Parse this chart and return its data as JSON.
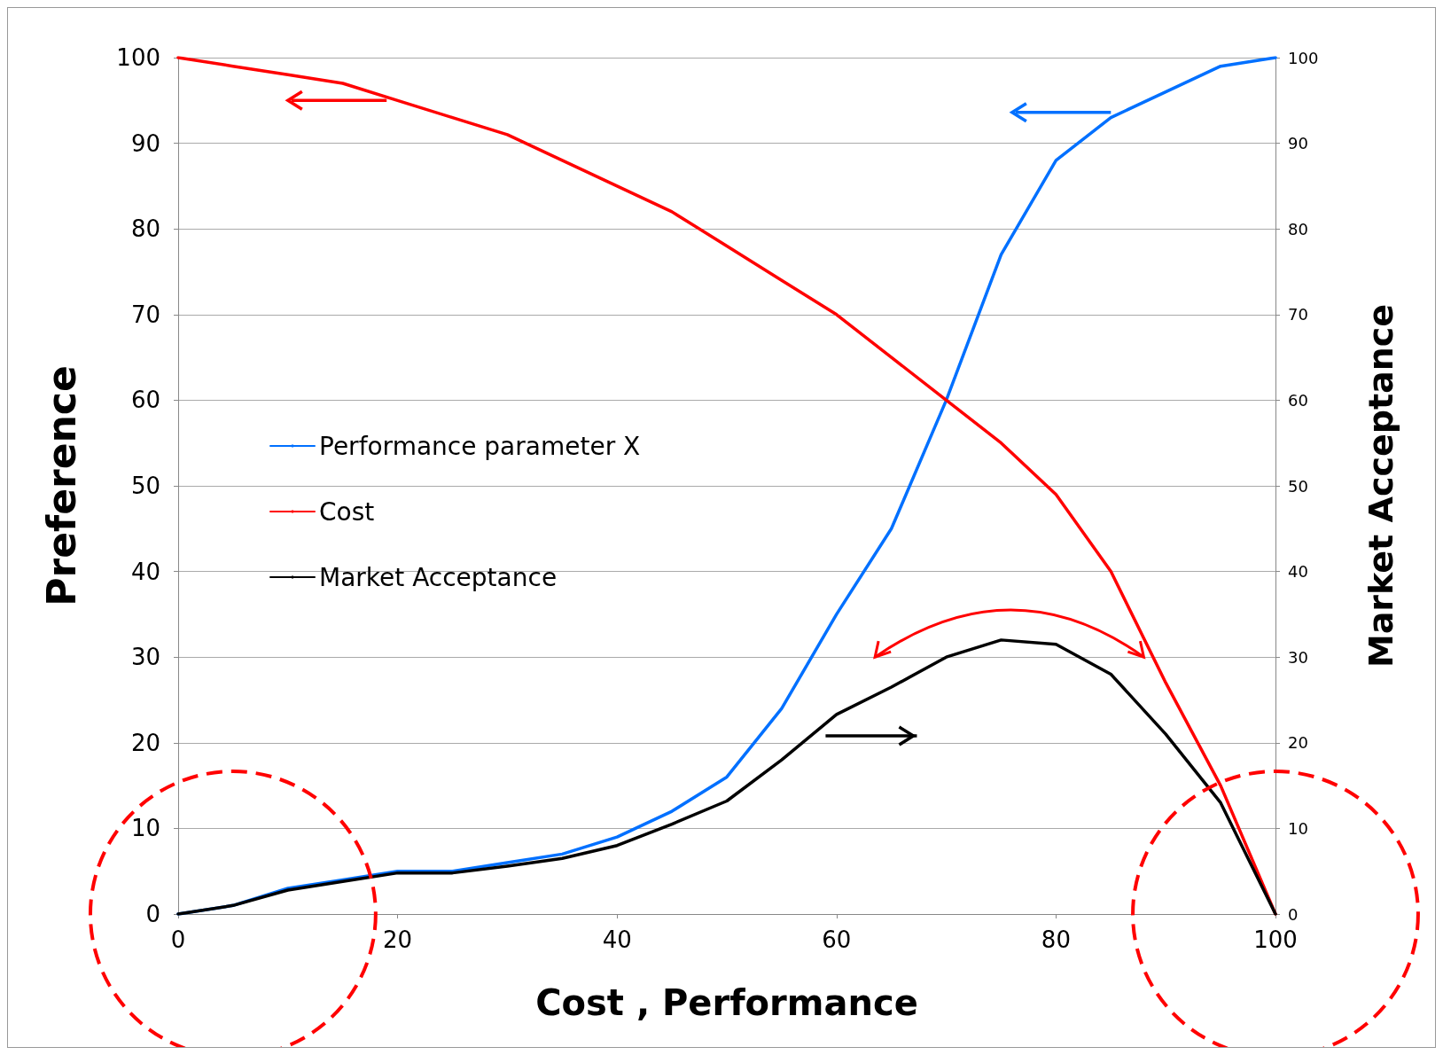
{
  "chart_data": {
    "type": "line",
    "xlabel": "Cost , Performance",
    "ylabel": "Preference",
    "y2label": "Market Acceptance",
    "x": [
      0,
      5,
      10,
      15,
      20,
      25,
      30,
      35,
      40,
      45,
      50,
      55,
      60,
      65,
      70,
      75,
      80,
      85,
      90,
      95,
      100
    ],
    "series": [
      {
        "name": "Performance parameter X",
        "color": "#0070ff",
        "values": [
          0,
          1,
          3,
          4,
          5,
          5,
          6,
          7,
          9,
          12,
          16,
          24,
          35,
          45,
          60,
          77,
          88,
          93,
          96,
          99,
          100
        ]
      },
      {
        "name": "Cost",
        "color": "#ff0000",
        "values": [
          100,
          99,
          98,
          97,
          95,
          93,
          91,
          88,
          85,
          82,
          78,
          74,
          70,
          65,
          60,
          55,
          49,
          40,
          27,
          15,
          0
        ]
      },
      {
        "name": "Market Acceptance",
        "color": "#000000",
        "axis": "y2",
        "values": [
          0,
          1,
          2.8,
          3.8,
          4.8,
          4.8,
          5.6,
          6.5,
          8,
          10.5,
          13.2,
          18,
          23.3,
          26.5,
          30,
          32,
          31.5,
          28,
          21,
          13,
          0
        ]
      }
    ],
    "xlim": [
      0,
      100
    ],
    "xticks": [
      0,
      20,
      40,
      60,
      80,
      100
    ],
    "ylim": [
      0,
      100
    ],
    "yticks": [
      0,
      10,
      20,
      30,
      40,
      50,
      60,
      70,
      80,
      90,
      100
    ],
    "y2lim": [
      0,
      100
    ],
    "y2ticks": [
      0,
      10,
      20,
      30,
      40,
      50,
      60,
      70,
      80,
      90,
      100
    ],
    "grid": "y",
    "legend": "left",
    "marker": "none",
    "line_style": "solid"
  }
}
